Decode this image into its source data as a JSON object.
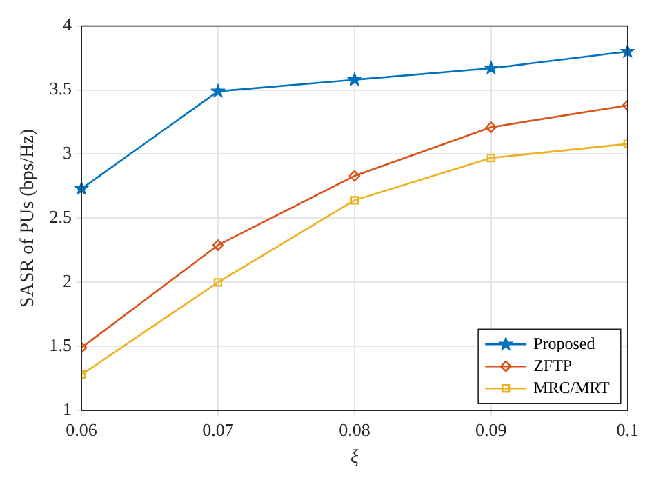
{
  "chart_data": {
    "type": "line",
    "xlabel": "ξ",
    "ylabel": "SASR of PUs (bps/Hz)",
    "x": [
      0.06,
      0.07,
      0.08,
      0.09,
      0.1
    ],
    "series": [
      {
        "name": "Proposed",
        "color": "#0072bd",
        "marker": "star",
        "values": [
          2.73,
          3.49,
          3.58,
          3.67,
          3.8
        ]
      },
      {
        "name": "ZFTP",
        "color": "#d95319",
        "marker": "diamond",
        "values": [
          1.49,
          2.29,
          2.83,
          3.21,
          3.38
        ]
      },
      {
        "name": "MRC/MRT",
        "color": "#edb120",
        "marker": "square",
        "values": [
          1.28,
          2.0,
          2.64,
          2.97,
          3.08
        ]
      }
    ],
    "xlim": [
      0.06,
      0.1
    ],
    "xticks": [
      0.06,
      0.07,
      0.08,
      0.09,
      0.1
    ],
    "ylim": [
      1,
      4
    ],
    "yticks": [
      1,
      1.5,
      2,
      2.5,
      3,
      3.5,
      4
    ],
    "grid": true,
    "legend": "bottom right",
    "line_style": "solid"
  }
}
